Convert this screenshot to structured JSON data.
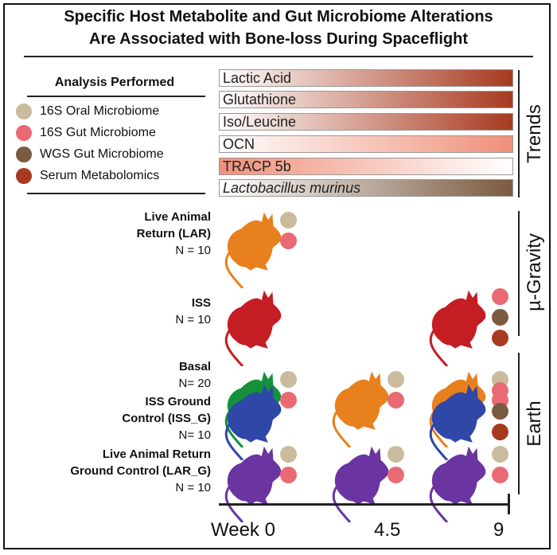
{
  "title": {
    "line1": "Specific Host Metabolite and Gut Microbiome Alterations",
    "line2": "Are Associated with Bone-loss During Spaceflight"
  },
  "legend": {
    "title": "Analysis Performed",
    "items": [
      {
        "label": "16S Oral Microbiome",
        "color": "#c9bb9b"
      },
      {
        "label": "16S Gut Microbiome",
        "color": "#ea6a74"
      },
      {
        "label": "WGS Gut Microbiome",
        "color": "#7a5a40"
      },
      {
        "label": "Serum Metabolomics",
        "color": "#a83a20"
      }
    ]
  },
  "trends": {
    "label": "Trends",
    "bars": [
      {
        "label": "Lactic Acid",
        "gradient": [
          "#ffffff",
          "#a83a20"
        ],
        "italic": false
      },
      {
        "label": "Glutathione",
        "gradient": [
          "#ffffff",
          "#a83a20"
        ],
        "italic": false
      },
      {
        "label": "Iso/Leucine",
        "gradient": [
          "#ffffff",
          "#a83a20"
        ],
        "italic": false
      },
      {
        "label": "OCN",
        "gradient": [
          "#ffffff",
          "#f0907a"
        ],
        "italic": false
      },
      {
        "label": "TRACP 5b",
        "gradient": [
          "#f0907a",
          "#ffffff"
        ],
        "italic": false
      },
      {
        "label": "Lactobacillus murinus",
        "gradient": [
          "#ffffff",
          "#7a5a40"
        ],
        "italic": true
      }
    ]
  },
  "sections": {
    "microgravity": "µ-Gravity",
    "earth": "Earth"
  },
  "groups": [
    {
      "name": "Live Animal",
      "name2": "Return (LAR)",
      "n": "N = 10",
      "color": "#e8801e",
      "samples": [
        {
          "week": 0,
          "dots": [
            "#c9bb9b",
            "#ea6a74"
          ]
        }
      ]
    },
    {
      "name": "ISS",
      "name2": "",
      "n": "N = 10",
      "color": "#c51d24",
      "samples": [
        {
          "week": 0,
          "dots": []
        },
        {
          "week": 9,
          "dots": [
            "#ea6a74",
            "#7a5a40",
            "#a83a20"
          ]
        }
      ]
    },
    {
      "name": "Basal",
      "name2": "",
      "n": "N= 20",
      "color": "#14913a",
      "samples": [
        {
          "week": 0,
          "dots": [
            "#c9bb9b",
            "#ea6a74"
          ]
        },
        {
          "week": 4.5,
          "dots": [
            "#c9bb9b",
            "#ea6a74"
          ],
          "color": "#e8801e"
        },
        {
          "week": 9,
          "dots": [
            "#c9bb9b",
            "#ea6a74"
          ],
          "color": "#e8801e"
        }
      ]
    },
    {
      "name": "ISS Ground",
      "name2": "Control (ISS_G)",
      "n": "N= 10",
      "color": "#2f47a6",
      "samples": [
        {
          "week": 0,
          "dots": []
        },
        {
          "week": 9,
          "dots": [
            "#ea6a74",
            "#7a5a40",
            "#a83a20"
          ]
        }
      ]
    },
    {
      "name": "Live Animal Return",
      "name2": "Ground Control (LAR_G)",
      "n": "N = 10",
      "color": "#6a35a0",
      "samples": [
        {
          "week": 0,
          "dots": [
            "#c9bb9b",
            "#ea6a74"
          ]
        },
        {
          "week": 4.5,
          "dots": [
            "#c9bb9b",
            "#ea6a74"
          ]
        },
        {
          "week": 9,
          "dots": [
            "#c9bb9b",
            "#ea6a74"
          ]
        }
      ]
    }
  ],
  "timeline": {
    "labels": [
      "Week 0",
      "4.5",
      "9"
    ]
  }
}
